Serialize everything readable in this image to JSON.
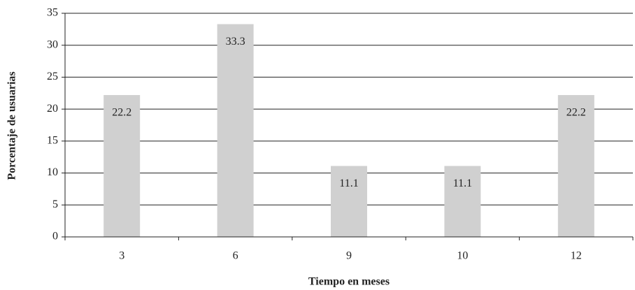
{
  "chart_data": {
    "type": "bar",
    "x_label": "Tiempo en meses",
    "y_label": "Porcentaje de usuarias",
    "categories": [
      "3",
      "6",
      "9",
      "10",
      "12"
    ],
    "values": [
      22.2,
      33.3,
      11.1,
      11.1,
      22.2
    ],
    "color": "#d0d0d0",
    "ylim": [
      0,
      35
    ],
    "yticks": [
      0,
      5,
      10,
      15,
      20,
      25,
      30,
      35
    ],
    "grid": true
  }
}
